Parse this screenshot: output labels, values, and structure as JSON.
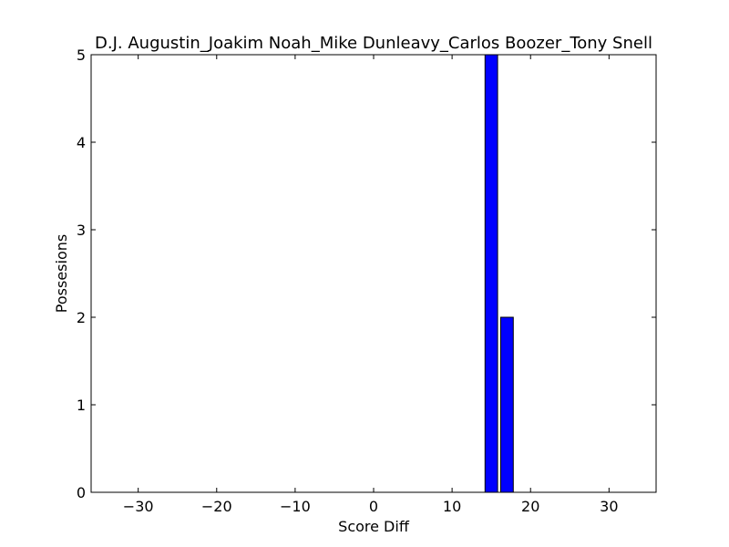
{
  "chart_data": {
    "type": "bar",
    "title": "D.J. Augustin_Joakim Noah_Mike Dunleavy_Carlos Boozer_Tony Snell",
    "xlabel": "Score Diff",
    "ylabel": "Possesions",
    "xlim": [
      -36,
      36
    ],
    "ylim": [
      0,
      5
    ],
    "xticks": [
      -30,
      -20,
      -10,
      0,
      10,
      20,
      30
    ],
    "xtick_labels": [
      "−30",
      "−20",
      "−10",
      "0",
      "10",
      "20",
      "30"
    ],
    "yticks": [
      0,
      1,
      2,
      3,
      4,
      5
    ],
    "ytick_labels": [
      "0",
      "1",
      "2",
      "3",
      "4",
      "5"
    ],
    "bar_width": 1.6,
    "x": [
      15,
      17
    ],
    "values": [
      5,
      2
    ],
    "bar_color": "#0000ff",
    "edge_color": "#000000",
    "grid": false
  }
}
